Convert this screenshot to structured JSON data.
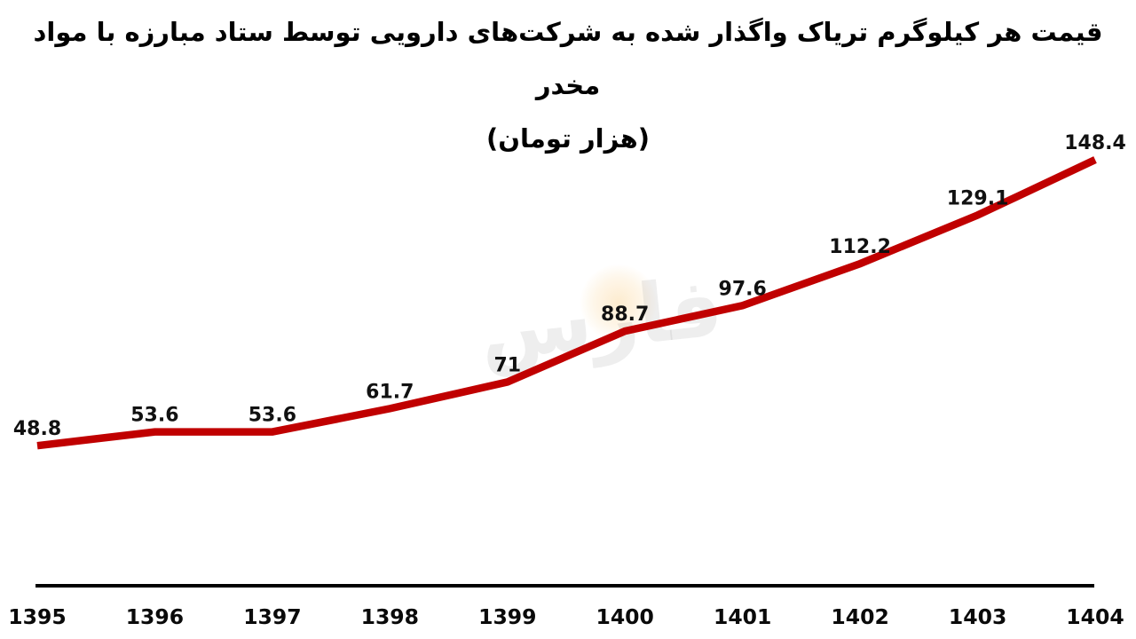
{
  "title": {
    "line1": "قیمت هر کیلوگرم تریاک واگذار شده به شرکت‌های دارویی توسط ستاد مبارزه با مواد مخدر",
    "line2": "(هزار تومان)"
  },
  "watermark": {
    "text": "فارس"
  },
  "chart_data": {
    "type": "line",
    "title": "قیمت هر کیلوگرم تریاک واگذار شده به شرکت‌های دارویی توسط ستاد مبارزه با مواد مخدر (هزار تومان)",
    "categories": [
      "1395",
      "1396",
      "1397",
      "1398",
      "1399",
      "1400",
      "1401",
      "1402",
      "1403",
      "1404"
    ],
    "series": [
      {
        "name": "قیمت هر کیلوگرم تریاک (هزار تومان)",
        "values": [
          48.8,
          53.6,
          53.6,
          61.7,
          71,
          88.7,
          97.6,
          112.2,
          129.1,
          148.4
        ]
      }
    ],
    "xlabel": "",
    "ylabel": "هزار تومان",
    "ylim": [
      0,
      148.4
    ],
    "grid": false,
    "legend_position": "none",
    "data_labels": true,
    "line_color": "#C00000",
    "axis_color": "#000000",
    "label_color": "#111111",
    "background_color": "#FFFFFF"
  }
}
